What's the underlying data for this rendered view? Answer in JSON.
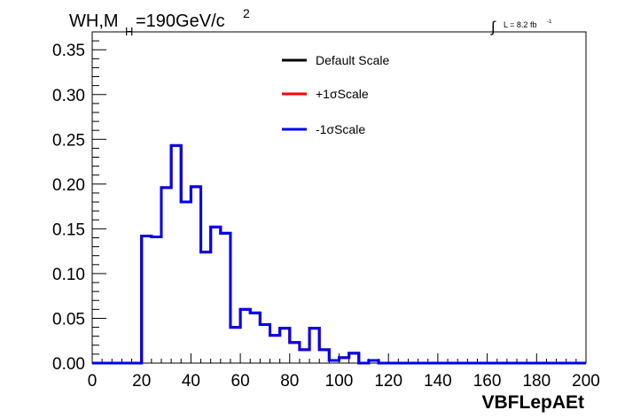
{
  "chart_data": {
    "type": "line",
    "title": {
      "prefix": "WH,M",
      "subscript": "H",
      "middle": "=190GeV/c",
      "superscript": "2"
    },
    "luminosity": {
      "symbol": "∫",
      "text": "L = 8.2 fb",
      "superscript": "-1"
    },
    "xlabel": "VBFLepAEt",
    "ylabel": "",
    "xlim": [
      0,
      200
    ],
    "ylim": [
      0,
      0.37
    ],
    "x_ticks": [
      0,
      20,
      40,
      60,
      80,
      100,
      120,
      140,
      160,
      180,
      200
    ],
    "x_tick_labels": [
      "0",
      "20",
      "40",
      "60",
      "80",
      "100",
      "120",
      "140",
      "160",
      "180",
      "200"
    ],
    "y_ticks": [
      0,
      0.05,
      0.1,
      0.15,
      0.2,
      0.25,
      0.3,
      0.35
    ],
    "y_tick_labels": [
      "0.00",
      "0.05",
      "0.10",
      "0.15",
      "0.20",
      "0.25",
      "0.30",
      "0.35"
    ],
    "grid": false,
    "legend_position": "top-center",
    "bin_edges": [
      0,
      4,
      8,
      12,
      16,
      20,
      24,
      28,
      32,
      36,
      40,
      44,
      48,
      52,
      56,
      60,
      64,
      68,
      72,
      76,
      80,
      84,
      88,
      92,
      96,
      100,
      104,
      108,
      112,
      116,
      120,
      124,
      200
    ],
    "series": [
      {
        "name": "Default Scale",
        "color": "#000000",
        "values": [
          0,
          0,
          0,
          0,
          0,
          0.142,
          0.141,
          0.196,
          0.243,
          0.18,
          0.197,
          0.124,
          0.152,
          0.145,
          0.04,
          0.06,
          0.056,
          0.043,
          0.031,
          0.039,
          0.023,
          0.015,
          0.039,
          0.015,
          0.003,
          0.006,
          0.011,
          0.0,
          0.003,
          0.0,
          0.0,
          0.0
        ]
      },
      {
        "name": "+1σScale",
        "color": "#ff0000",
        "values": [
          0,
          0,
          0,
          0,
          0,
          0.142,
          0.141,
          0.196,
          0.243,
          0.18,
          0.197,
          0.124,
          0.152,
          0.145,
          0.04,
          0.06,
          0.056,
          0.043,
          0.031,
          0.039,
          0.023,
          0.015,
          0.039,
          0.015,
          0.003,
          0.006,
          0.011,
          0.0,
          0.003,
          0.0,
          0.0,
          0.0
        ]
      },
      {
        "name": "-1σScale",
        "color": "#0000ee",
        "values": [
          0,
          0,
          0,
          0,
          0,
          0.142,
          0.141,
          0.196,
          0.243,
          0.18,
          0.197,
          0.124,
          0.152,
          0.145,
          0.04,
          0.06,
          0.056,
          0.043,
          0.031,
          0.039,
          0.023,
          0.015,
          0.039,
          0.015,
          0.003,
          0.006,
          0.011,
          0.0,
          0.003,
          0.0,
          0.0,
          0.0
        ]
      }
    ]
  }
}
